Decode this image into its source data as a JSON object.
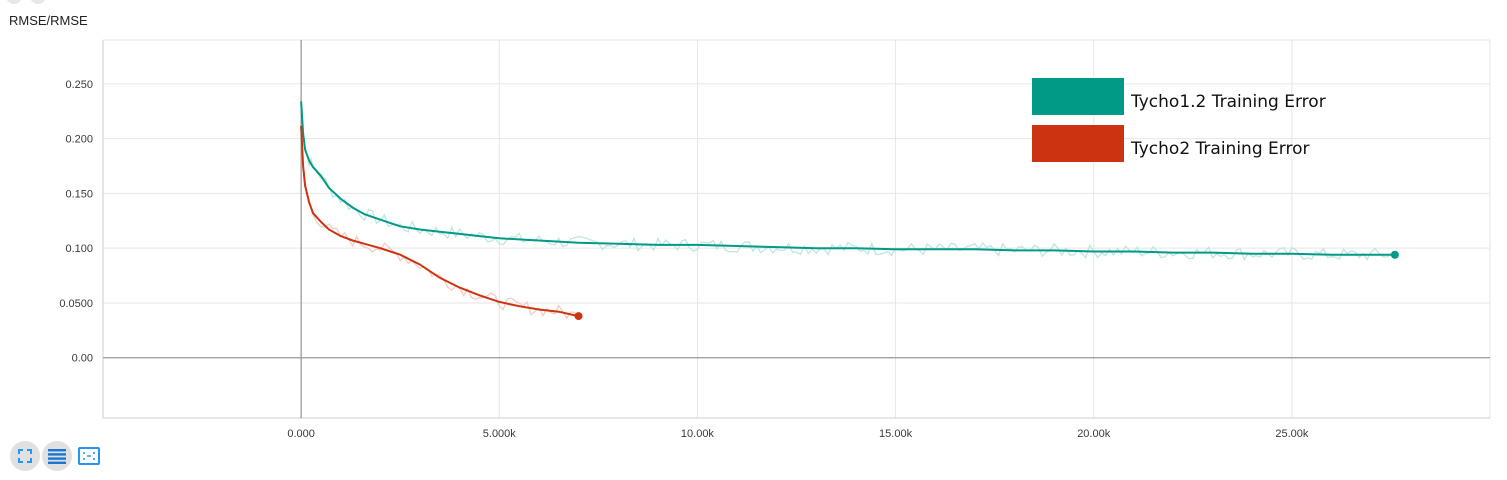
{
  "chart_data": {
    "type": "line",
    "title": "RMSE/RMSE",
    "xlabel": "",
    "ylabel": "",
    "xlim": [
      -5000,
      30000
    ],
    "ylim": [
      -0.055,
      0.29
    ],
    "xticks": [
      0,
      5000,
      10000,
      15000,
      20000,
      25000
    ],
    "xtick_labels": [
      "0.000",
      "5.000k",
      "10.00k",
      "15.00k",
      "20.00k",
      "25.00k"
    ],
    "yticks": [
      0,
      0.05,
      0.1,
      0.15,
      0.2,
      0.25
    ],
    "ytick_labels": [
      "0.00",
      "0.0500",
      "0.100",
      "0.150",
      "0.200",
      "0.250"
    ],
    "grid": true,
    "legend_position": "top-right",
    "series": [
      {
        "name": "Tycho1.2 Training Error",
        "color": "#009a86",
        "x": [
          0,
          50,
          100,
          200,
          300,
          500,
          700,
          1000,
          1300,
          1600,
          2000,
          2500,
          3000,
          3500,
          4000,
          4500,
          5000,
          6000,
          7000,
          8000,
          9000,
          10000,
          11000,
          12000,
          13000,
          14000,
          15000,
          16000,
          17000,
          18000,
          19000,
          20000,
          21000,
          22000,
          23000,
          24000,
          25000,
          26000,
          27000,
          27600
        ],
        "values": [
          0.234,
          0.205,
          0.19,
          0.18,
          0.174,
          0.166,
          0.155,
          0.145,
          0.137,
          0.131,
          0.126,
          0.12,
          0.117,
          0.115,
          0.113,
          0.111,
          0.109,
          0.107,
          0.105,
          0.104,
          0.103,
          0.103,
          0.102,
          0.101,
          0.1,
          0.1,
          0.099,
          0.099,
          0.099,
          0.098,
          0.098,
          0.097,
          0.097,
          0.096,
          0.096,
          0.095,
          0.095,
          0.094,
          0.094,
          0.094
        ]
      },
      {
        "name": "Tycho2 Training Error",
        "color": "#cc3311",
        "x": [
          0,
          50,
          100,
          200,
          300,
          500,
          700,
          1000,
          1300,
          1600,
          2000,
          2500,
          3000,
          3500,
          4000,
          4500,
          5000,
          5500,
          6000,
          6500,
          7000
        ],
        "values": [
          0.212,
          0.175,
          0.157,
          0.142,
          0.132,
          0.124,
          0.117,
          0.111,
          0.107,
          0.104,
          0.1,
          0.094,
          0.085,
          0.073,
          0.064,
          0.057,
          0.051,
          0.047,
          0.044,
          0.042,
          0.038
        ]
      }
    ]
  },
  "toolbar": {
    "expand_icon": "fullscreen-icon",
    "list_icon": "list-icon",
    "fit_icon": "fit-domain-icon"
  }
}
